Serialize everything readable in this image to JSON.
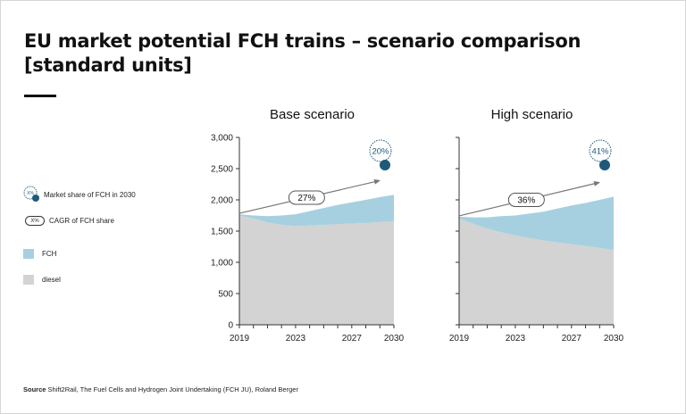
{
  "title": "EU market potential FCH trains – scenario comparison [standard units]",
  "legend": {
    "market_share_icon_text": "X%",
    "market_share_label": "Market share of FCH in 2030",
    "cagr_icon_text": "X%",
    "cagr_label": "CAGR of FCH share",
    "fch_label": "FCH",
    "diesel_label": "diesel"
  },
  "source": {
    "prefix": "Source",
    "text": "Shift2Rail, The Fuel Cells and Hydrogen Joint Undertaking (FCH JU), Roland Berger"
  },
  "colors": {
    "fch": "#a6d0e0",
    "diesel": "#d3d3d3",
    "accent": "#1d5a7a",
    "arrow": "#777777"
  },
  "chart_data": [
    {
      "type": "area",
      "title": "Base scenario",
      "x": [
        2019,
        2020,
        2021,
        2022,
        2023,
        2024,
        2025,
        2026,
        2027,
        2028,
        2029,
        2030
      ],
      "x_tick_labels": [
        "2019",
        "2023",
        "2027",
        "2030"
      ],
      "ylim": [
        0,
        3000
      ],
      "y_ticks": [
        0,
        500,
        1000,
        1500,
        2000,
        2500,
        3000
      ],
      "y_tick_labels": [
        "0",
        "500",
        "1,000",
        "1,500",
        "2,000",
        "2,500",
        "3,000"
      ],
      "series": [
        {
          "name": "diesel",
          "values": [
            1750,
            1700,
            1640,
            1600,
            1580,
            1590,
            1600,
            1610,
            1620,
            1630,
            1645,
            1660
          ]
        },
        {
          "name": "FCH",
          "values": [
            20,
            50,
            100,
            150,
            190,
            230,
            270,
            310,
            340,
            370,
            400,
            420
          ]
        }
      ],
      "market_share_2030": "20%",
      "cagr_label": "27%"
    },
    {
      "type": "area",
      "title": "High scenario",
      "x": [
        2019,
        2020,
        2021,
        2022,
        2023,
        2024,
        2025,
        2026,
        2027,
        2028,
        2029,
        2030
      ],
      "x_tick_labels": [
        "2019",
        "2023",
        "2027",
        "2030"
      ],
      "ylim": [
        0,
        3000
      ],
      "y_ticks": [
        0,
        500,
        1000,
        1500,
        2000,
        2500,
        3000
      ],
      "series": [
        {
          "name": "diesel",
          "values": [
            1700,
            1620,
            1540,
            1480,
            1430,
            1390,
            1350,
            1320,
            1290,
            1260,
            1230,
            1200
          ]
        },
        {
          "name": "FCH",
          "values": [
            30,
            100,
            180,
            260,
            320,
            390,
            460,
            540,
            620,
            690,
            770,
            850
          ]
        }
      ],
      "market_share_2030": "41%",
      "cagr_label": "36%"
    }
  ]
}
